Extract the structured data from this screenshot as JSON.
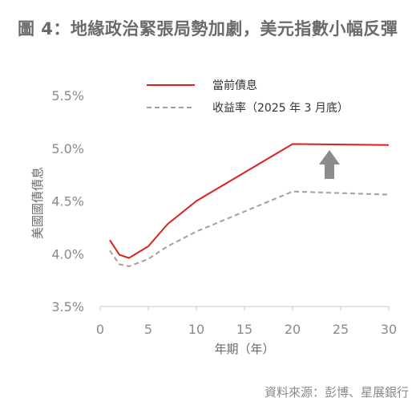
{
  "title": "圖 4：地緣政治緊張局勢加劇，美元指數小幅反彈",
  "source": "資料來源：彭博、星展銀行",
  "chart_data": {
    "type": "line",
    "xlabel": "年期（年）",
    "ylabel": "美國國債債息",
    "xlim": [
      0,
      30
    ],
    "ylim": [
      3.5,
      5.5
    ],
    "x_ticks": [
      "0",
      "5",
      "10",
      "15",
      "20",
      "25",
      "30"
    ],
    "y_ticks": [
      "3.5%",
      "4.0%",
      "4.5%",
      "5.0%",
      "5.5%"
    ],
    "grid": false,
    "legend_position": "top",
    "annotation": "up-arrow",
    "series": [
      {
        "name": "當前債息",
        "color": "#e0201f",
        "style": "solid",
        "x": [
          1,
          2,
          3,
          5,
          7,
          10,
          20,
          30
        ],
        "y": [
          4.13,
          3.99,
          3.96,
          4.07,
          4.28,
          4.5,
          5.04,
          5.03
        ]
      },
      {
        "name": "收益率（2025 年 3 月底）",
        "color": "#a0a0a0",
        "style": "dashed",
        "x": [
          1,
          2,
          3,
          5,
          7,
          10,
          20,
          30
        ],
        "y": [
          4.03,
          3.9,
          3.88,
          3.95,
          4.07,
          4.21,
          4.59,
          4.56
        ]
      }
    ]
  }
}
